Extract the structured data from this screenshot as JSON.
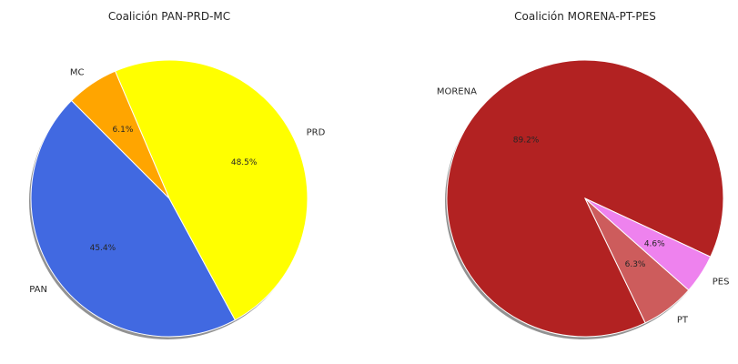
{
  "chart_data": [
    {
      "type": "pie",
      "title": "Coalición PAN-PRD-MC",
      "shadow": true,
      "slices": [
        {
          "label": "PAN",
          "value": 45.4,
          "pct_label": "45.4%",
          "color": "#4169e1"
        },
        {
          "label": "PRD",
          "value": 48.5,
          "pct_label": "48.5%",
          "color": "#ffff00"
        },
        {
          "label": "MC",
          "value": 6.1,
          "pct_label": "6.1%",
          "color": "#ffa500"
        }
      ]
    },
    {
      "type": "pie",
      "title": "Coalición MORENA-PT-PES",
      "shadow": true,
      "slices": [
        {
          "label": "MORENA",
          "value": 89.2,
          "pct_label": "89.2%",
          "color": "#b22222"
        },
        {
          "label": "PT",
          "value": 6.3,
          "pct_label": "6.3%",
          "color": "#cd5c5c"
        },
        {
          "label": "PES",
          "value": 4.6,
          "pct_label": "4.6%",
          "color": "#ee82ee"
        }
      ]
    }
  ]
}
